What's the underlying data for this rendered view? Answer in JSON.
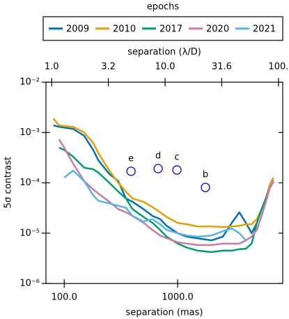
{
  "chart_data": {
    "type": "line",
    "legend_title": "epochs",
    "legend": "top-outside",
    "xlabel": "separation (mas)",
    "x2label": "separation (λ/D)",
    "ylabel": "5σ contrast",
    "xscale": "log",
    "yscale": "log",
    "xlim": [
      69,
      8450
    ],
    "xticks": [
      {
        "value": 100,
        "label": "100.0"
      },
      {
        "value": 1000,
        "label": "1000.0"
      }
    ],
    "x2lim": [
      0.89,
      109
    ],
    "x2ticks": [
      {
        "value": 1,
        "label": "1.0"
      },
      {
        "value": 3.16,
        "label": "3.2"
      },
      {
        "value": 10,
        "label": "10.0"
      },
      {
        "value": 31.6,
        "label": "31.6"
      },
      {
        "value": 100,
        "label": "100."
      }
    ],
    "ylim": [
      1e-06,
      0.01
    ],
    "yticks": [
      {
        "value": 1e-06,
        "label": "10⁻⁶"
      },
      {
        "value": 1e-05,
        "label": "10⁻⁵"
      },
      {
        "value": 0.0001,
        "label": "10⁻⁴"
      },
      {
        "value": 0.001,
        "label": "10⁻³"
      },
      {
        "value": 0.01,
        "label": "10⁻²"
      }
    ],
    "x": [
      80,
      90,
      100,
      120,
      150,
      180,
      200,
      250,
      300,
      350,
      400,
      500,
      600,
      700,
      800,
      1000,
      1200,
      1500,
      2000,
      2500,
      3000,
      3500,
      4000,
      4500,
      5000,
      5500,
      6000,
      6500,
      7000
    ],
    "series": [
      {
        "name": "2009",
        "color": "#0072b2",
        "values": [
          0.00139,
          0.0013,
          0.00125,
          0.00118,
          0.00086,
          0.00045,
          0.00028,
          0.00015,
          0.000108,
          4.9e-05,
          4.2e-05,
          3e-05,
          2.2e-05,
          1.9e-05,
          1.4e-05,
          1e-05,
          8.5e-06,
          7.9e-06,
          7.2e-06,
          8.5e-06,
          1.6e-05,
          2.6e-05,
          1.6e-05,
          1e-05,
          1.6e-05,
          3e-05,
          4.9e-05,
          7.9e-05,
          0.000108
        ]
      },
      {
        "name": "2010",
        "color": "#e69f00",
        "values": [
          0.0019,
          0.00139,
          0.00134,
          0.0013,
          0.001,
          0.00062,
          0.00039,
          0.000175,
          0.0001,
          6.7e-05,
          4.9e-05,
          4.2e-05,
          3.3e-05,
          2.6e-05,
          2.1e-05,
          1.6e-05,
          1.5e-05,
          1.36e-05,
          1.36e-05,
          1.32e-05,
          1.36e-05,
          1.4e-05,
          1.5e-05,
          1.5e-05,
          1.9e-05,
          3e-05,
          4.9e-05,
          9.2e-05,
          0.000127
        ]
      },
      {
        "name": "2017",
        "color": "#009e73",
        "values": [
          null,
          0.0005,
          0.00045,
          0.00033,
          0.0002,
          0.000186,
          0.00016,
          0.0001,
          6.7e-05,
          4.9e-05,
          3e-05,
          2.1e-05,
          1.6e-05,
          1.16e-05,
          8.5e-06,
          6.2e-06,
          5.2e-06,
          4.5e-06,
          4.2e-06,
          4.5e-06,
          4.5e-06,
          4.8e-06,
          4.9e-06,
          6.2e-06,
          1.6e-05,
          3e-05,
          4.9e-05,
          7.9e-05,
          0.000108
        ]
      },
      {
        "name": "2020",
        "color": "#cc79a7",
        "values": [
          null,
          0.00073,
          0.0005,
          0.00024,
          0.000108,
          7.4e-05,
          6.1e-05,
          4.2e-05,
          3e-05,
          2.6e-05,
          2.2e-05,
          1.6e-05,
          1.16e-05,
          9e-06,
          7.9e-06,
          6.6e-06,
          6.2e-06,
          5.8e-06,
          5.8e-06,
          6.2e-06,
          6.2e-06,
          6.2e-06,
          7.2e-06,
          8.5e-06,
          1.16e-05,
          2.2e-05,
          4.2e-05,
          7.9e-05,
          0.000115
        ]
      },
      {
        "name": "2021",
        "color": "#56b4e9",
        "values": [
          null,
          null,
          0.000127,
          0.000175,
          0.000108,
          5.7e-05,
          4.4e-05,
          3.9e-05,
          3.5e-05,
          3.2e-05,
          2.2e-05,
          1.7e-05,
          1.9e-05,
          1.5e-05,
          1.16e-05,
          1e-05,
          9e-06,
          8.5e-06,
          9e-06,
          1.09e-05,
          1.24e-05,
          1e-05,
          7.2e-06,
          null,
          null,
          null,
          null,
          null,
          null
        ]
      }
    ],
    "planets": {
      "labels": [
        "e",
        "d",
        "c",
        "b"
      ],
      "x": [
        388,
        673,
        986,
        1758
      ],
      "y": [
        0.00017,
        0.000192,
        0.00018,
        8.1e-05
      ],
      "color": "#0000ff"
    }
  }
}
